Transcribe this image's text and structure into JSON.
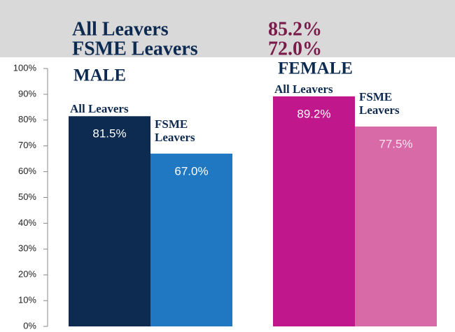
{
  "header": {
    "rows": [
      {
        "label": "All Leavers",
        "value": "85.2%"
      },
      {
        "label": "FSME Leavers",
        "value": "72.0%"
      }
    ]
  },
  "chart_data": {
    "type": "bar",
    "categories": [
      "MALE",
      "FEMALE"
    ],
    "series": [
      {
        "name": "All Leavers",
        "colors": [
          "#0d2a50",
          "#c0178c"
        ],
        "values": [
          81.5,
          89.2
        ],
        "value_labels": [
          "81.5%",
          "89.2%"
        ]
      },
      {
        "name": "FSME Leavers",
        "colors": [
          "#1f78c1",
          "#d96aa8"
        ],
        "values": [
          67.0,
          77.5
        ],
        "value_labels": [
          "67.0%",
          "77.5%"
        ]
      }
    ],
    "ylim": [
      0,
      100
    ],
    "yticks": [
      {
        "value": 0,
        "label": "0%"
      },
      {
        "value": 10,
        "label": "10%"
      },
      {
        "value": 20,
        "label": "20%"
      },
      {
        "value": 30,
        "label": "30%"
      },
      {
        "value": 40,
        "label": "40%"
      },
      {
        "value": 50,
        "label": "50%"
      },
      {
        "value": 60,
        "label": "60%"
      },
      {
        "value": 70,
        "label": "70%"
      },
      {
        "value": 80,
        "label": "80%"
      },
      {
        "value": 90,
        "label": "90%"
      },
      {
        "value": 100,
        "label": "100%"
      }
    ]
  }
}
